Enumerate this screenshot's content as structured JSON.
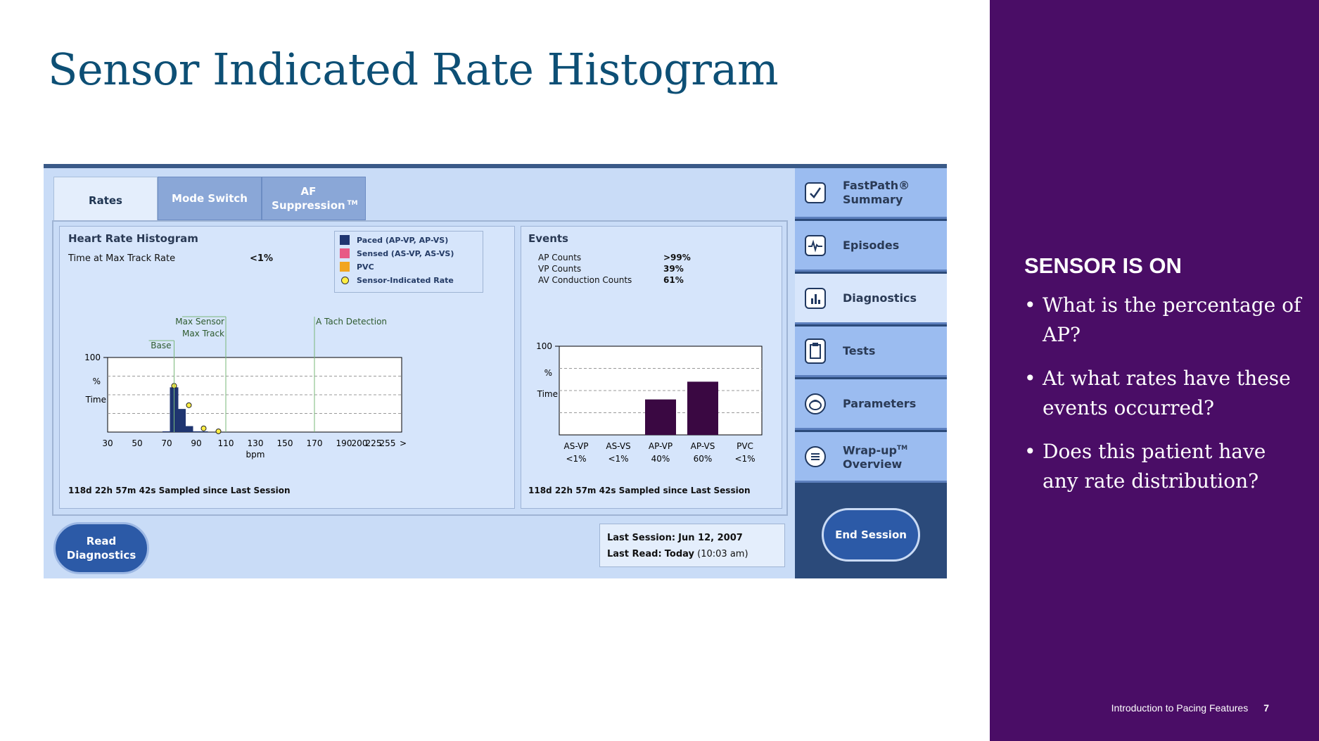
{
  "slide": {
    "title": "Sensor Indicated Rate Histogram",
    "sidebar_heading": "SENSOR IS ON",
    "questions": [
      "What is the percentage of AP?",
      "At what rates have these events occurred?",
      "Does this patient have any rate distribution?"
    ],
    "footer_text": "Introduction to Pacing Features",
    "page_number": "7"
  },
  "device": {
    "tabs": [
      {
        "label": "Rates",
        "active": true
      },
      {
        "label": "Mode Switch",
        "active": false
      },
      {
        "label": "AF Suppression",
        "sup": "TM",
        "active": false
      }
    ],
    "nav": [
      {
        "label": "FastPath®",
        "label2": "Summary",
        "icon": "checkmark-icon"
      },
      {
        "label": "Episodes",
        "icon": "ecg-waveform-icon"
      },
      {
        "label": "Diagnostics",
        "icon": "bar-chart-icon",
        "active": true
      },
      {
        "label": "Tests",
        "icon": "clipboard-icon"
      },
      {
        "label": "Parameters",
        "icon": "device-icon"
      },
      {
        "label": "Wrap-up",
        "sup": "TM",
        "label2": "Overview",
        "icon": "list-icon"
      }
    ],
    "end_session": "End Session",
    "read_diagnostics": [
      "Read",
      "Diagnostics"
    ],
    "last_session_label": "Last Session:",
    "last_session_value": "Jun 12, 2007",
    "last_read_label": "Last Read:",
    "last_read_value": "Today",
    "last_read_time": "(10:03 am)",
    "histogram": {
      "title": "Heart Rate Histogram",
      "max_track_label": "Time at Max Track Rate",
      "max_track_value": "<1%",
      "legend": [
        {
          "label": "Paced (AP-VP, AP-VS)",
          "color": "#1f3570"
        },
        {
          "label": "Sensed (AS-VP, AS-VS)",
          "color": "#e85a85"
        },
        {
          "label": "PVC",
          "color": "#f2a51e"
        },
        {
          "label": "Sensor-Indicated Rate",
          "marker": "circle"
        }
      ],
      "markers": {
        "base": "Base",
        "max_sensor": "Max Sensor",
        "max_track": "Max Track",
        "a_tach": "A Tach Detection"
      },
      "sampled": "118d 22h 57m 42s Sampled since Last Session"
    },
    "events": {
      "title": "Events",
      "rows": [
        {
          "label": "AP Counts",
          "value": ">99%"
        },
        {
          "label": "VP Counts",
          "value": "39%"
        },
        {
          "label": "AV Conduction Counts",
          "value": "61%"
        }
      ],
      "sampled": "118d 22h 57m 42s Sampled since Last Session"
    }
  },
  "chart_data": [
    {
      "type": "bar",
      "title": "Heart Rate Histogram",
      "xlabel": "bpm",
      "ylabel": [
        "%",
        "Time"
      ],
      "ylim": [
        0,
        100
      ],
      "y_ticks": [
        "100"
      ],
      "x_ticks": [
        "30",
        "50",
        "70",
        "90",
        "110",
        "130",
        "150",
        "170",
        "190",
        "200",
        "225",
        "255",
        ">"
      ],
      "bar_color": "#1f3570",
      "series": [
        {
          "name": "Paced (AP-VP, AP-VS)",
          "x": [
            70,
            75,
            80,
            85,
            90,
            95
          ],
          "values": [
            1,
            60,
            31,
            8,
            1,
            1
          ]
        },
        {
          "name": "Sensor-Indicated Rate",
          "x": [
            75,
            85,
            95,
            105
          ],
          "values": [
            62,
            36,
            5,
            1
          ]
        }
      ],
      "vertical_markers": [
        {
          "label": "Base",
          "x": 75
        },
        {
          "label": "Max Sensor",
          "x": 110
        },
        {
          "label": "Max Track",
          "x": 110
        },
        {
          "label": "A Tach Detection",
          "x": 170
        }
      ],
      "grid": "dashed horizontal"
    },
    {
      "type": "bar",
      "title": "Events",
      "ylabel": [
        "%",
        "Time"
      ],
      "ylim": [
        0,
        100
      ],
      "y_ticks": [
        "100"
      ],
      "categories": [
        "AS-VP",
        "AS-VS",
        "AP-VP",
        "AP-VS",
        "PVC"
      ],
      "category_values": [
        "<1%",
        "<1%",
        "40%",
        "60%",
        "<1%"
      ],
      "values": [
        0,
        0,
        40,
        60,
        0
      ],
      "bar_color": "#3a0842",
      "grid": "dashed horizontal"
    }
  ]
}
